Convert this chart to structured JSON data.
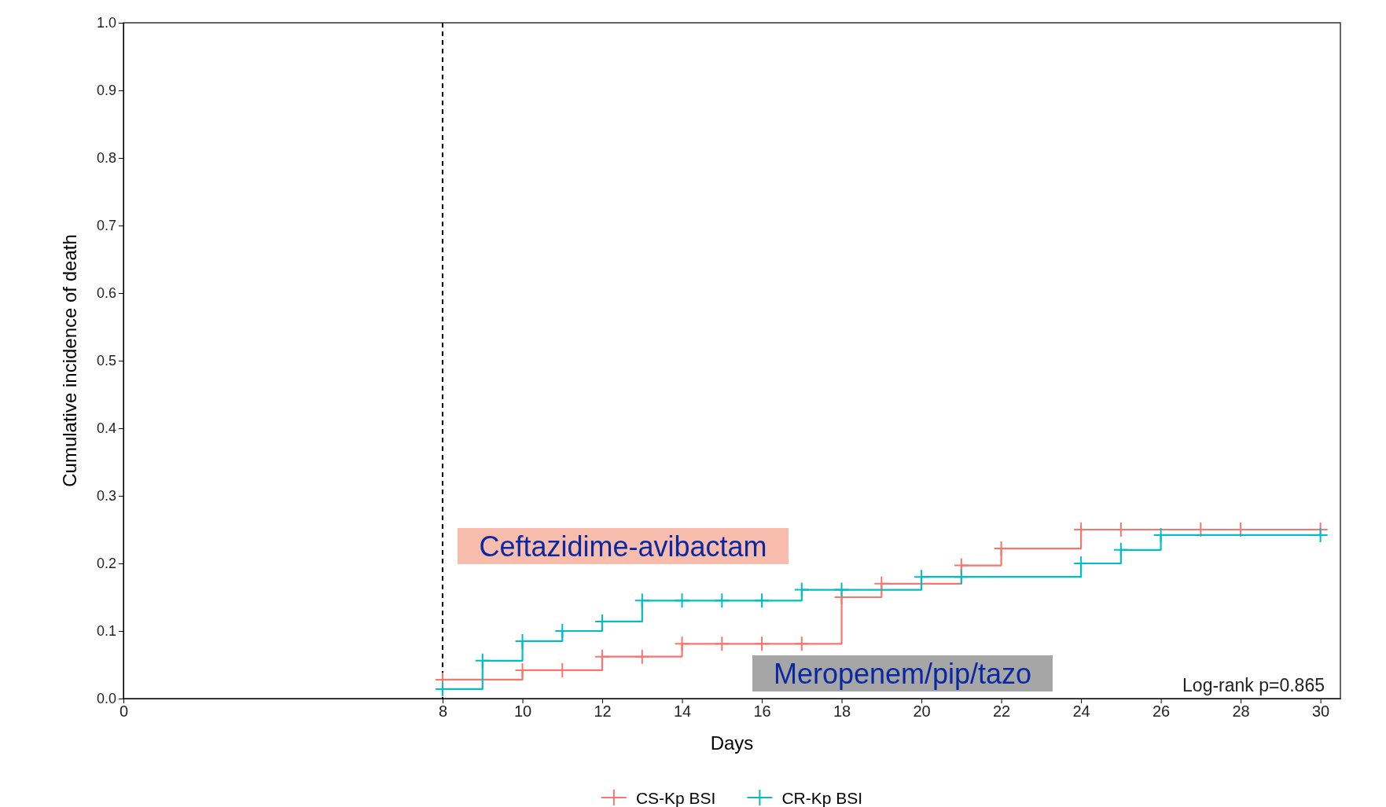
{
  "chart_data": {
    "type": "step",
    "xlabel": "Days",
    "ylabel": "Cumulative incidence of death",
    "xlim": [
      0,
      30.5
    ],
    "ylim": [
      0,
      1.0
    ],
    "xticks": [
      0,
      8,
      10,
      12,
      14,
      16,
      18,
      20,
      22,
      24,
      26,
      28,
      30
    ],
    "yticks": [
      {
        "value": 0,
        "label": "0.0"
      },
      0.1,
      0.2,
      0.3,
      0.4,
      0.5,
      0.6,
      0.7,
      0.8,
      0.9,
      {
        "value": 1,
        "label": "1.0"
      }
    ],
    "series": [
      {
        "name": "CS-Kp BSI",
        "color": "#f8766d",
        "x": [
          8,
          10,
          11,
          12,
          13,
          14,
          15,
          16,
          17,
          18,
          19,
          21,
          22,
          24,
          25,
          27,
          28,
          30
        ],
        "values": [
          0.028,
          0.042,
          0.042,
          0.062,
          0.062,
          0.081,
          0.081,
          0.081,
          0.081,
          0.15,
          0.17,
          0.197,
          0.222,
          0.25,
          0.25,
          0.25,
          0.25,
          0.25
        ]
      },
      {
        "name": "CR-Kp BSI",
        "color": "#00bfc4",
        "x": [
          8,
          9,
          10,
          11,
          12,
          13,
          14,
          15,
          16,
          17,
          18,
          20,
          21,
          24,
          25,
          26,
          30
        ],
        "values": [
          0.014,
          0.056,
          0.085,
          0.1,
          0.114,
          0.145,
          0.145,
          0.145,
          0.145,
          0.161,
          0.161,
          0.18,
          0.18,
          0.2,
          0.22,
          0.242,
          0.242
        ]
      }
    ],
    "marker": "cross",
    "legend": "bottom",
    "grid": false,
    "ref_lines": [
      {
        "axis": "x",
        "value": 8,
        "line_style": "dashed",
        "color": "#000000"
      }
    ],
    "annotations": [
      "Ceftazidime-avibactam",
      "Meropenem/pip/tazo",
      "Log-rank p=0.865"
    ]
  }
}
